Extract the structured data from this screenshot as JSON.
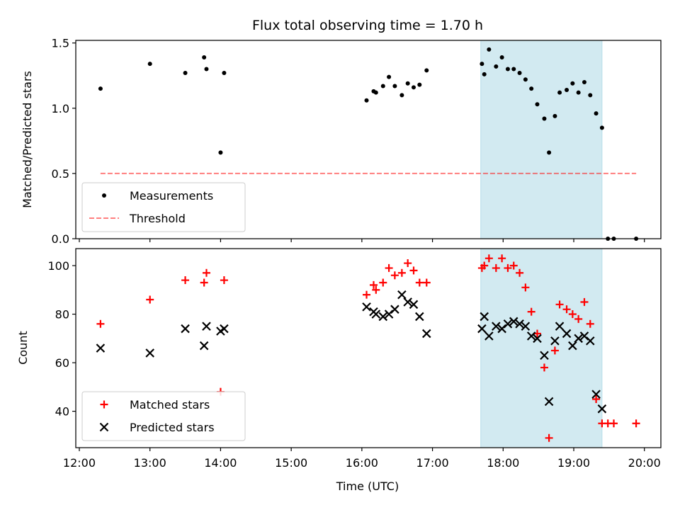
{
  "figure": {
    "title": "Flux total observing time = 1.70 h",
    "xlabel": "Time (UTC)",
    "x_tick_labels": [
      "12:00",
      "13:00",
      "14:00",
      "15:00",
      "16:00",
      "17:00",
      "18:00",
      "19:00",
      "20:00"
    ]
  },
  "chart_data": [
    {
      "type": "scatter",
      "panel": "top",
      "ylabel": "Matched/Predicted stars",
      "xlim": [
        "11:57",
        "20:14"
      ],
      "ylim": [
        0,
        1.52
      ],
      "y_ticks": [
        0,
        0.5,
        1.0,
        1.5
      ],
      "y_tick_labels": [
        "0.0",
        "0.5",
        "1.0",
        "1.5"
      ],
      "legend_position": "lower-left",
      "highlight_span": {
        "from": "17:41",
        "to": "19:24",
        "color": "#add8e6"
      },
      "series": [
        {
          "name": "Measurements",
          "color": "#000000",
          "marker": "dot",
          "points": [
            [
              "12:18",
              1.15
            ],
            [
              "13:00",
              1.34
            ],
            [
              "13:30",
              1.27
            ],
            [
              "13:46",
              1.39
            ],
            [
              "13:48",
              1.3
            ],
            [
              "14:00",
              0.66
            ],
            [
              "14:03",
              1.27
            ],
            [
              "16:04",
              1.06
            ],
            [
              "16:10",
              1.13
            ],
            [
              "16:12",
              1.12
            ],
            [
              "16:18",
              1.17
            ],
            [
              "16:23",
              1.24
            ],
            [
              "16:28",
              1.17
            ],
            [
              "16:34",
              1.1
            ],
            [
              "16:39",
              1.19
            ],
            [
              "16:44",
              1.16
            ],
            [
              "16:49",
              1.18
            ],
            [
              "16:55",
              1.29
            ],
            [
              "17:42",
              1.34
            ],
            [
              "17:44",
              1.26
            ],
            [
              "17:48",
              1.45
            ],
            [
              "17:54",
              1.32
            ],
            [
              "17:59",
              1.39
            ],
            [
              "18:04",
              1.3
            ],
            [
              "18:09",
              1.3
            ],
            [
              "18:14",
              1.27
            ],
            [
              "18:19",
              1.22
            ],
            [
              "18:24",
              1.15
            ],
            [
              "18:29",
              1.03
            ],
            [
              "18:35",
              0.92
            ],
            [
              "18:39",
              0.66
            ],
            [
              "18:44",
              0.94
            ],
            [
              "18:48",
              1.12
            ],
            [
              "18:54",
              1.14
            ],
            [
              "18:59",
              1.19
            ],
            [
              "19:04",
              1.12
            ],
            [
              "19:09",
              1.2
            ],
            [
              "19:14",
              1.1
            ],
            [
              "19:19",
              0.96
            ],
            [
              "19:24",
              0.85
            ],
            [
              "19:29",
              0.0
            ],
            [
              "19:34",
              0.0
            ],
            [
              "19:53",
              0.0
            ]
          ]
        },
        {
          "name": "Threshold",
          "color": "#ff0000",
          "opacity": 0.5,
          "line_style": "dashed",
          "points": [
            [
              "12:18",
              0.5
            ],
            [
              "19:53",
              0.5
            ]
          ]
        }
      ]
    },
    {
      "type": "scatter",
      "panel": "bottom",
      "ylabel": "Count",
      "xlim": [
        "11:57",
        "20:14"
      ],
      "ylim": [
        25,
        107
      ],
      "y_ticks": [
        40,
        60,
        80,
        100
      ],
      "y_tick_labels": [
        "40",
        "60",
        "80",
        "100"
      ],
      "legend_position": "lower-left",
      "highlight_span": {
        "from": "17:41",
        "to": "19:24",
        "color": "#add8e6"
      },
      "series": [
        {
          "name": "Matched stars",
          "color": "#ff0000",
          "marker": "plus",
          "points": [
            [
              "12:18",
              76
            ],
            [
              "13:00",
              86
            ],
            [
              "13:30",
              94
            ],
            [
              "13:46",
              93
            ],
            [
              "13:48",
              97
            ],
            [
              "14:00",
              48
            ],
            [
              "14:03",
              94
            ],
            [
              "16:04",
              88
            ],
            [
              "16:10",
              92
            ],
            [
              "16:12",
              90
            ],
            [
              "16:18",
              93
            ],
            [
              "16:23",
              99
            ],
            [
              "16:28",
              96
            ],
            [
              "16:34",
              97
            ],
            [
              "16:39",
              101
            ],
            [
              "16:44",
              98
            ],
            [
              "16:49",
              93
            ],
            [
              "16:55",
              93
            ],
            [
              "17:42",
              99
            ],
            [
              "17:44",
              100
            ],
            [
              "17:48",
              103
            ],
            [
              "17:54",
              99
            ],
            [
              "17:59",
              103
            ],
            [
              "18:04",
              99
            ],
            [
              "18:09",
              100
            ],
            [
              "18:14",
              97
            ],
            [
              "18:19",
              91
            ],
            [
              "18:24",
              81
            ],
            [
              "18:29",
              72
            ],
            [
              "18:35",
              58
            ],
            [
              "18:39",
              29
            ],
            [
              "18:44",
              65
            ],
            [
              "18:48",
              84
            ],
            [
              "18:54",
              82
            ],
            [
              "18:59",
              80
            ],
            [
              "19:04",
              78
            ],
            [
              "19:09",
              85
            ],
            [
              "19:14",
              76
            ],
            [
              "19:19",
              45
            ],
            [
              "19:24",
              35
            ],
            [
              "19:29",
              35
            ],
            [
              "19:34",
              35
            ],
            [
              "19:53",
              35
            ]
          ]
        },
        {
          "name": "Predicted stars",
          "color": "#000000",
          "marker": "x",
          "points": [
            [
              "12:18",
              66
            ],
            [
              "13:00",
              64
            ],
            [
              "13:30",
              74
            ],
            [
              "13:46",
              67
            ],
            [
              "13:48",
              75
            ],
            [
              "14:00",
              73
            ],
            [
              "14:03",
              74
            ],
            [
              "16:04",
              83
            ],
            [
              "16:10",
              81
            ],
            [
              "16:12",
              80
            ],
            [
              "16:18",
              79
            ],
            [
              "16:23",
              80
            ],
            [
              "16:28",
              82
            ],
            [
              "16:34",
              88
            ],
            [
              "16:39",
              85
            ],
            [
              "16:44",
              84
            ],
            [
              "16:49",
              79
            ],
            [
              "16:55",
              72
            ],
            [
              "17:42",
              74
            ],
            [
              "17:44",
              79
            ],
            [
              "17:48",
              71
            ],
            [
              "17:54",
              75
            ],
            [
              "17:59",
              74
            ],
            [
              "18:04",
              76
            ],
            [
              "18:09",
              77
            ],
            [
              "18:14",
              76
            ],
            [
              "18:19",
              75
            ],
            [
              "18:24",
              71
            ],
            [
              "18:29",
              70
            ],
            [
              "18:35",
              63
            ],
            [
              "18:39",
              44
            ],
            [
              "18:44",
              69
            ],
            [
              "18:48",
              75
            ],
            [
              "18:54",
              72
            ],
            [
              "18:59",
              67
            ],
            [
              "19:04",
              70
            ],
            [
              "19:09",
              71
            ],
            [
              "19:14",
              69
            ],
            [
              "19:19",
              47
            ],
            [
              "19:24",
              41
            ]
          ]
        }
      ]
    }
  ]
}
